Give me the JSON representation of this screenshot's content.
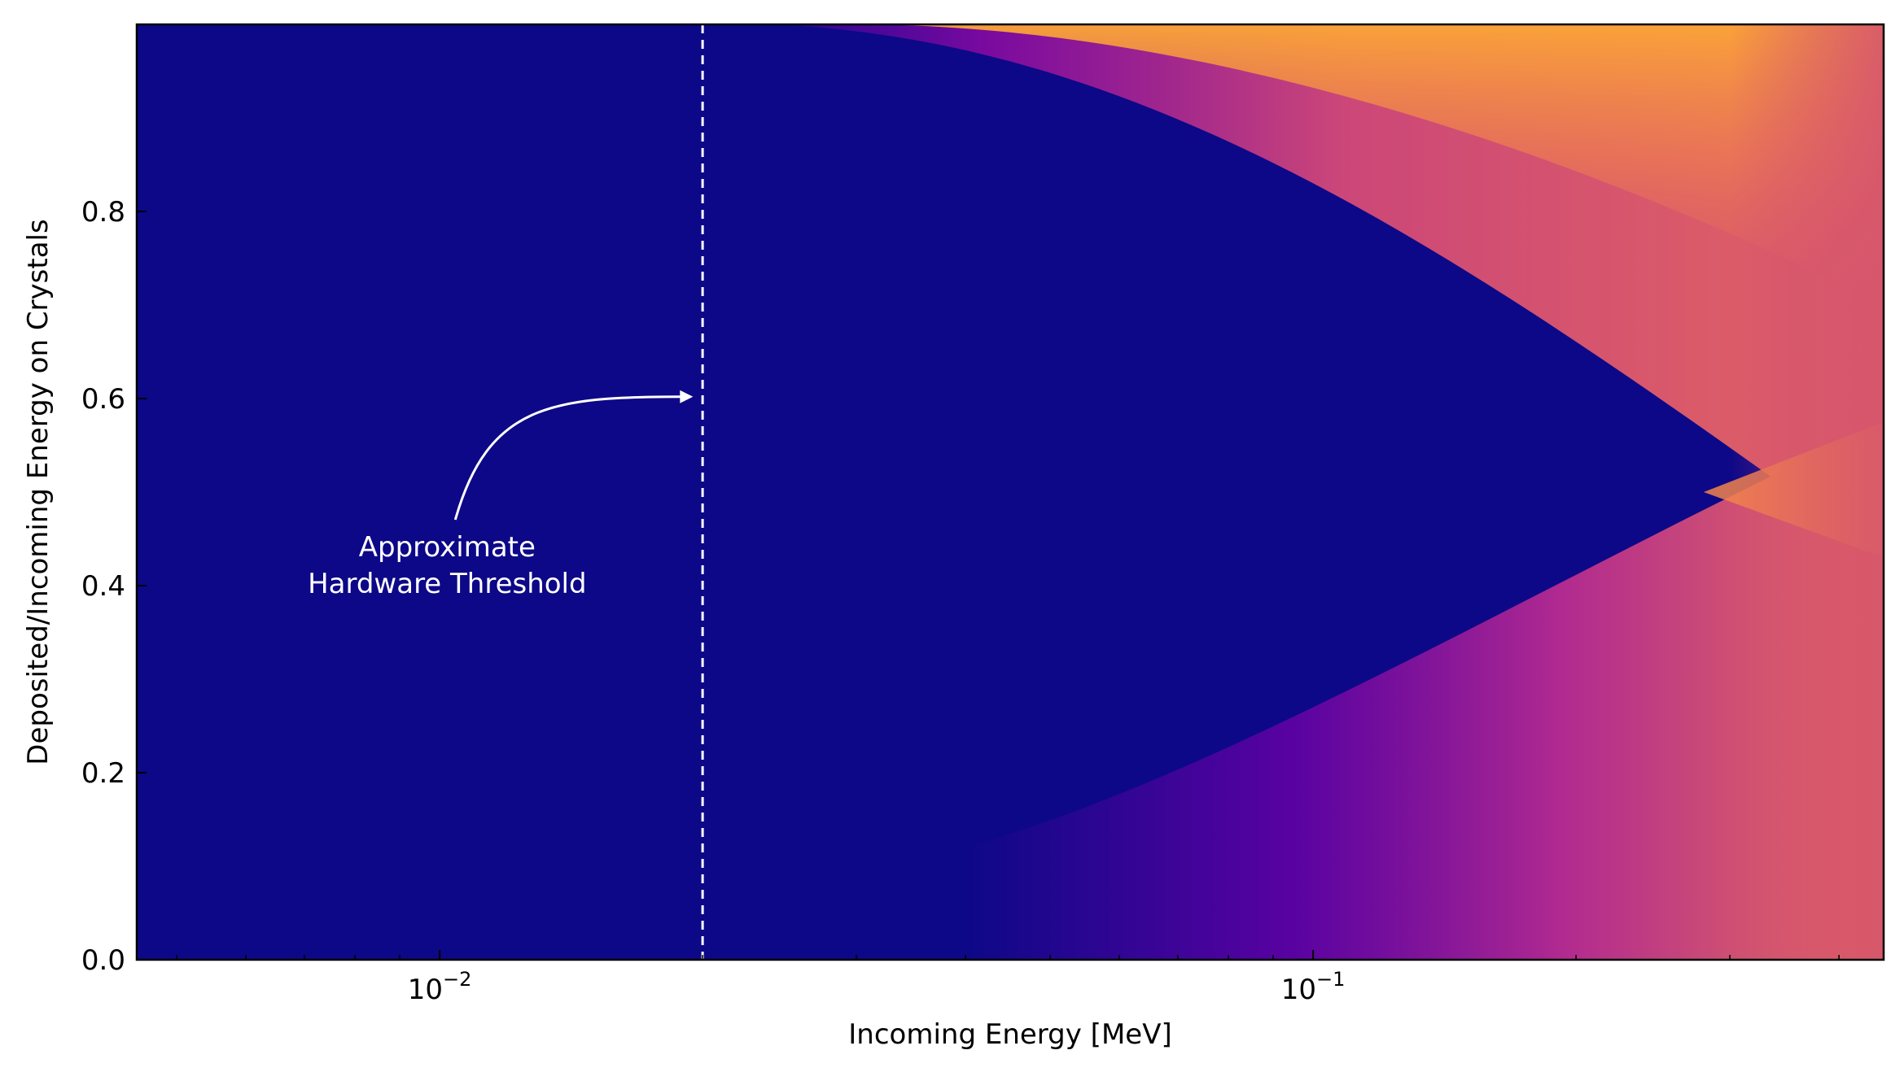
{
  "chart_data": {
    "type": "heatmap",
    "title": "",
    "xlabel": "Incoming Energy [MeV]",
    "ylabel": "Deposited/Incoming Energy on Crystals",
    "x_scale": "log",
    "xlim": [
      0.0045,
      0.45
    ],
    "ylim": [
      0.0,
      1.0
    ],
    "x_major_ticks": [
      {
        "value": 0.01,
        "base": "10",
        "exponent": "−2"
      },
      {
        "value": 0.1,
        "base": "10",
        "exponent": "−1"
      }
    ],
    "y_ticks": [
      {
        "value": 0.0,
        "label": "0.0"
      },
      {
        "value": 0.2,
        "label": "0.2"
      },
      {
        "value": 0.4,
        "label": "0.4"
      },
      {
        "value": 0.6,
        "label": "0.6"
      },
      {
        "value": 0.8,
        "label": "0.8"
      }
    ],
    "grid": false,
    "colormap": "plasma",
    "colors": {
      "background": "#0d0887",
      "purple": "#6a00a8",
      "magenta": "#b12a90",
      "pink": "#cc4778",
      "orange": "#e16462",
      "light_orange": "#f2844b",
      "yellow_orange": "#fca636"
    },
    "threshold": {
      "x": 0.02,
      "style": "dashed",
      "color": "#ffffff"
    },
    "annotation": {
      "lines": [
        "Approximate",
        "Hardware Threshold"
      ],
      "text_x": 0.0102,
      "text_y": 0.44,
      "arrow_to_x": 0.0195,
      "arrow_to_y": 0.602
    },
    "regions": [
      {
        "name": "upper-band",
        "x_start": 0.019,
        "y_top": 1.0,
        "y_bottom_at_end": 0.43
      },
      {
        "name": "lower-band",
        "x_start": 0.04,
        "y_bottom": 0.0,
        "y_top_at_end": 0.575
      }
    ]
  }
}
